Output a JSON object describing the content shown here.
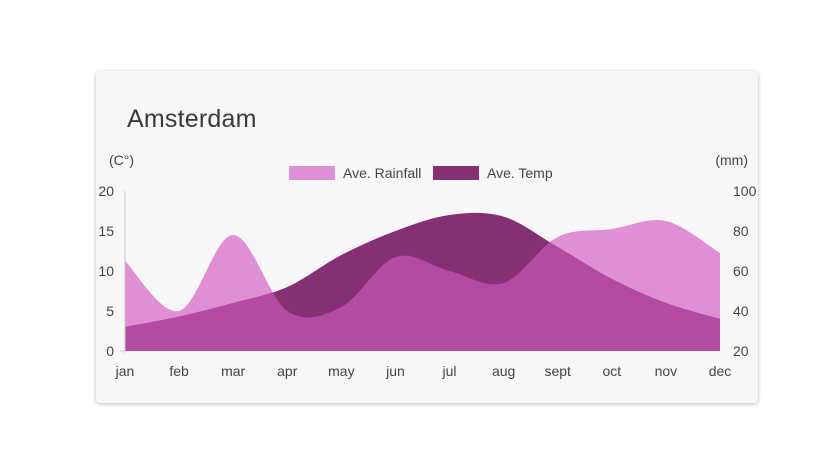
{
  "page": {
    "title": "Amsterdam"
  },
  "colors": {
    "rainfall": "#e08fd4",
    "temp": "#852f75",
    "overlap": "#b34ba3",
    "card_bg": "#f7f7f9"
  },
  "chart_data": {
    "type": "area",
    "title": "Amsterdam",
    "categories": [
      "jan",
      "feb",
      "mar",
      "apr",
      "may",
      "jun",
      "jul",
      "aug",
      "sept",
      "oct",
      "nov",
      "dec"
    ],
    "series": [
      {
        "name": "Ave. Rainfall",
        "axis": "right",
        "color": "#e08fd4",
        "values": [
          65,
          40,
          78,
          40,
          42,
          67,
          60,
          54,
          77,
          81,
          85,
          69
        ]
      },
      {
        "name": "Ave. Temp",
        "axis": "left",
        "color": "#852f75",
        "values": [
          3,
          4.3,
          6,
          8,
          12,
          15,
          17,
          16.8,
          13,
          9,
          6,
          4
        ]
      }
    ],
    "y_left": {
      "label": "(C°)",
      "range": [
        0,
        20
      ],
      "ticks": [
        "0",
        "5",
        "10",
        "15",
        "20"
      ]
    },
    "y_right": {
      "label": "(mm)",
      "range": [
        20,
        100
      ],
      "ticks": [
        "20",
        "40",
        "60",
        "80",
        "100"
      ]
    },
    "legend_placement": "top-center",
    "grid": false
  }
}
